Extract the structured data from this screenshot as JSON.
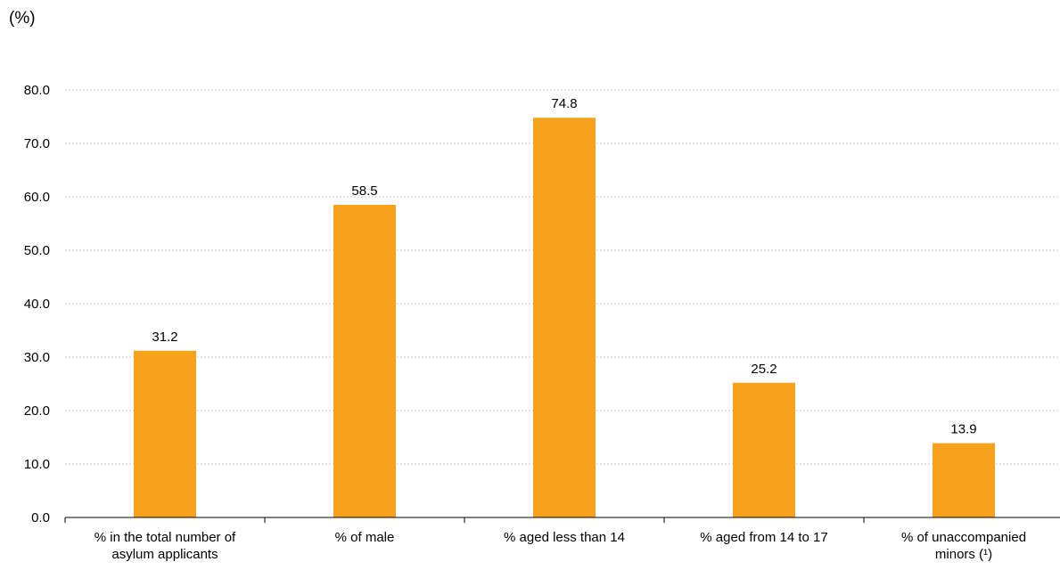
{
  "chart_data": {
    "type": "bar",
    "unit_label": "(%)",
    "categories": [
      [
        "% in the total number of",
        "asylum applicants"
      ],
      [
        "% of male"
      ],
      [
        "% aged less than 14"
      ],
      [
        "% aged from 14 to 17"
      ],
      [
        "% of unaccompanied",
        "minors (¹)"
      ]
    ],
    "values": [
      31.2,
      58.5,
      74.8,
      25.2,
      13.9
    ],
    "value_labels": [
      "31.2",
      "58.5",
      "74.8",
      "25.2",
      "13.9"
    ],
    "yticks": [
      "0.0",
      "10.0",
      "20.0",
      "30.0",
      "40.0",
      "50.0",
      "60.0",
      "70.0",
      "80.0"
    ],
    "ylim": [
      0,
      80
    ],
    "grid": true,
    "bar_color": "#f6a31b",
    "grid_color": "#c8c8c8"
  }
}
